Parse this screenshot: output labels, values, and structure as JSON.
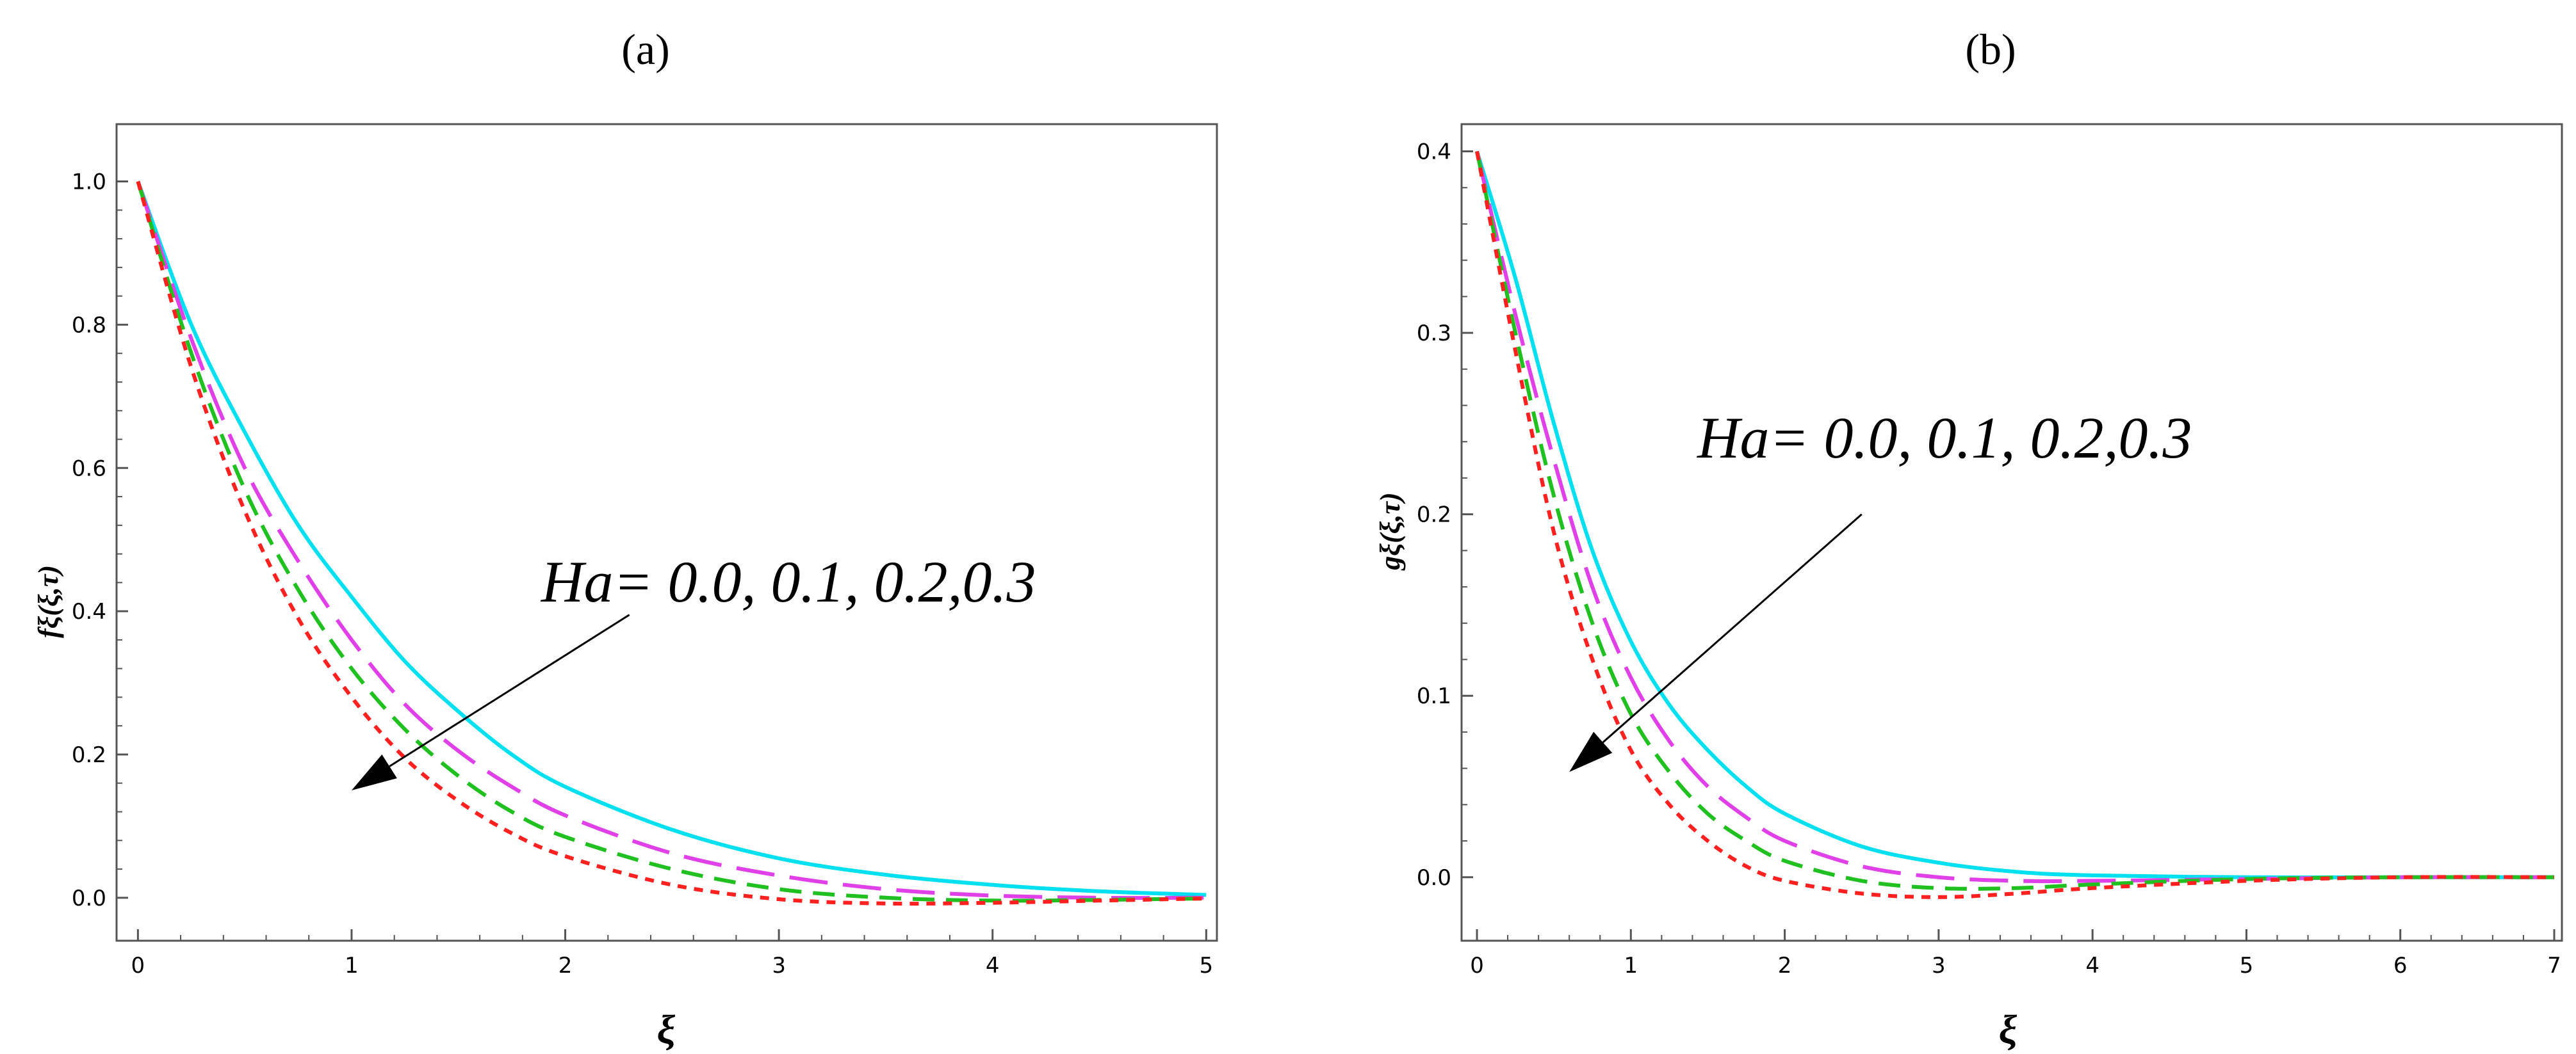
{
  "chart_data": [
    {
      "type": "line",
      "panel_label": "(a)",
      "title": "",
      "xlabel": "ξ",
      "ylabel": "fξ(ξ,τ)",
      "xlim": [
        -0.1,
        5.05
      ],
      "ylim": [
        -0.06,
        1.08
      ],
      "xticks": [
        0,
        1,
        2,
        3,
        4,
        5
      ],
      "xtick_labels": [
        "0",
        "1",
        "2",
        "3",
        "4",
        "5"
      ],
      "yticks": [
        0.0,
        0.2,
        0.4,
        0.6,
        0.8,
        1.0
      ],
      "ytick_labels": [
        "0.0",
        "0.2",
        "0.4",
        "0.6",
        "0.8",
        "1.0"
      ],
      "grid": false,
      "annotation": "Ha= 0.0, 0.1, 0.2,0.3",
      "arrow": {
        "from": [
          2.3,
          0.395
        ],
        "to": [
          1.0,
          0.15
        ]
      },
      "series": [
        {
          "name": "Ha = 0.0",
          "color": "#00e0f0",
          "dash": "solid",
          "x": [
            0,
            0.25,
            0.5,
            0.75,
            1,
            1.25,
            1.5,
            1.75,
            2,
            2.5,
            3,
            3.5,
            4,
            4.5,
            5
          ],
          "y": [
            1.0,
            0.8,
            0.65,
            0.52,
            0.42,
            0.33,
            0.26,
            0.2,
            0.155,
            0.095,
            0.055,
            0.032,
            0.018,
            0.009,
            0.004
          ]
        },
        {
          "name": "Ha = 0.1",
          "color": "#e040e8",
          "dash": "longdash",
          "x": [
            0,
            0.25,
            0.5,
            0.75,
            1,
            1.25,
            1.5,
            1.75,
            2,
            2.5,
            3,
            3.5,
            4,
            4.5,
            5
          ],
          "y": [
            1.0,
            0.78,
            0.6,
            0.47,
            0.36,
            0.27,
            0.205,
            0.155,
            0.115,
            0.062,
            0.031,
            0.012,
            0.003,
            0.0,
            0.0
          ]
        },
        {
          "name": "Ha = 0.2",
          "color": "#20c020",
          "dash": "mediumdash",
          "x": [
            0,
            0.25,
            0.5,
            0.75,
            1,
            1.25,
            1.5,
            1.75,
            2,
            2.5,
            3,
            3.5,
            4,
            4.5,
            5
          ],
          "y": [
            1.0,
            0.76,
            0.57,
            0.43,
            0.32,
            0.235,
            0.17,
            0.12,
            0.085,
            0.04,
            0.012,
            0.0,
            -0.004,
            -0.003,
            -0.001
          ]
        },
        {
          "name": "Ha = 0.3",
          "color": "#ff2020",
          "dash": "shortdash",
          "x": [
            0,
            0.25,
            0.5,
            0.75,
            1,
            1.25,
            1.5,
            1.75,
            2,
            2.5,
            3,
            3.5,
            4,
            4.5,
            5
          ],
          "y": [
            1.0,
            0.74,
            0.54,
            0.39,
            0.28,
            0.195,
            0.135,
            0.09,
            0.058,
            0.018,
            -0.002,
            -0.008,
            -0.007,
            -0.004,
            -0.001
          ]
        }
      ]
    },
    {
      "type": "line",
      "panel_label": "(b)",
      "title": "",
      "xlabel": "ξ",
      "ylabel": "gξ(ξ,τ)",
      "xlim": [
        -0.1,
        7.05
      ],
      "ylim": [
        -0.035,
        0.415
      ],
      "xticks": [
        0,
        1,
        2,
        3,
        4,
        5,
        6,
        7
      ],
      "xtick_labels": [
        "0",
        "1",
        "2",
        "3",
        "4",
        "5",
        "6",
        "7"
      ],
      "yticks": [
        0.0,
        0.1,
        0.2,
        0.3,
        0.4
      ],
      "ytick_labels": [
        "0.0",
        "0.1",
        "0.2",
        "0.3",
        "0.4"
      ],
      "grid": false,
      "annotation": "Ha= 0.0, 0.1, 0.2,0.3",
      "arrow": {
        "from": [
          2.5,
          0.2
        ],
        "to": [
          0.6,
          0.058
        ]
      },
      "series": [
        {
          "name": "Ha = 0.0",
          "color": "#00e0f0",
          "dash": "solid",
          "x": [
            0,
            0.25,
            0.5,
            0.75,
            1,
            1.25,
            1.5,
            1.75,
            2,
            2.5,
            3,
            3.5,
            4,
            5,
            6,
            7
          ],
          "y": [
            0.4,
            0.33,
            0.25,
            0.18,
            0.13,
            0.095,
            0.07,
            0.05,
            0.035,
            0.017,
            0.008,
            0.003,
            0.001,
            0.0,
            0.0,
            0.0
          ]
        },
        {
          "name": "Ha = 0.1",
          "color": "#e040e8",
          "dash": "longdash",
          "x": [
            0,
            0.25,
            0.5,
            0.75,
            1,
            1.25,
            1.5,
            1.75,
            2,
            2.5,
            3,
            3.5,
            4,
            5,
            6,
            7
          ],
          "y": [
            0.4,
            0.31,
            0.23,
            0.16,
            0.11,
            0.075,
            0.05,
            0.033,
            0.02,
            0.006,
            0.0,
            -0.002,
            -0.002,
            -0.001,
            0.0,
            0.0
          ]
        },
        {
          "name": "Ha = 0.2",
          "color": "#20c020",
          "dash": "mediumdash",
          "x": [
            0,
            0.25,
            0.5,
            0.75,
            1,
            1.25,
            1.5,
            1.75,
            2,
            2.5,
            3,
            3.5,
            4,
            5,
            6,
            7
          ],
          "y": [
            0.4,
            0.3,
            0.21,
            0.14,
            0.09,
            0.058,
            0.035,
            0.02,
            0.009,
            -0.002,
            -0.006,
            -0.006,
            -0.004,
            -0.001,
            0.0,
            0.0
          ]
        },
        {
          "name": "Ha = 0.3",
          "color": "#ff2020",
          "dash": "shortdash",
          "x": [
            0,
            0.25,
            0.5,
            0.75,
            1,
            1.25,
            1.5,
            1.75,
            2,
            2.5,
            3,
            3.5,
            4,
            5,
            6,
            7
          ],
          "y": [
            0.4,
            0.29,
            0.19,
            0.12,
            0.07,
            0.04,
            0.02,
            0.006,
            -0.002,
            -0.009,
            -0.011,
            -0.009,
            -0.006,
            -0.002,
            0.0,
            0.0
          ]
        }
      ]
    }
  ]
}
